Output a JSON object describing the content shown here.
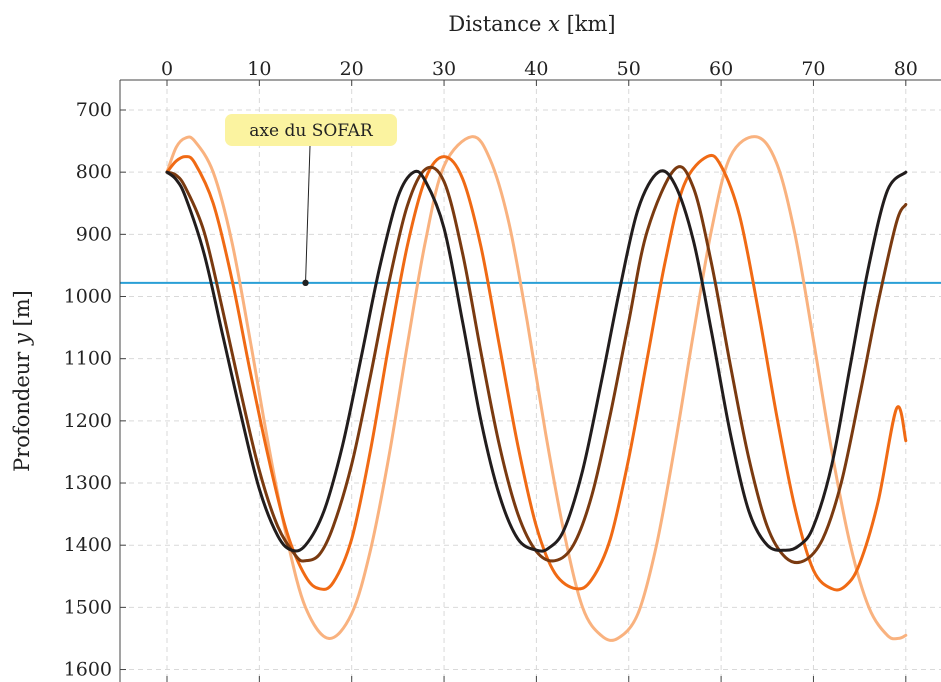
{
  "chart_data": {
    "type": "line",
    "xlabel_prefix": "Distance ",
    "xlabel_var": "x",
    "xlabel_unit": " [km]",
    "ylabel_prefix": "Profondeur ",
    "ylabel_var": "y",
    "ylabel_unit": " [m]",
    "xlim": [
      -5,
      81
    ],
    "ylim": [
      1625,
      665
    ],
    "y_inverted": true,
    "x_ticks": [
      0,
      10,
      20,
      30,
      40,
      50,
      60,
      70,
      80
    ],
    "y_ticks": [
      700,
      800,
      900,
      1000,
      1100,
      1200,
      1300,
      1400,
      1500,
      1600
    ],
    "x_tick_labels": [
      "0",
      "10",
      "20",
      "30",
      "40",
      "50",
      "60",
      "70",
      "80"
    ],
    "y_tick_labels": [
      "700",
      "800",
      "900",
      "1000",
      "1100",
      "1200",
      "1300",
      "1400",
      "1500",
      "1600"
    ],
    "grid": true,
    "x_axis_position": "top",
    "annotation": {
      "text": "axe du SOFAR",
      "x": 15,
      "y": 978,
      "color": "#fbf3a0"
    },
    "reference_line": {
      "y": 978,
      "color": "#2a9fd6"
    },
    "series": [
      {
        "color": "#221d1d",
        "x": [
          0,
          1,
          2,
          4,
          6,
          8,
          10,
          12,
          13.5,
          15,
          17,
          19,
          21,
          23,
          25,
          26.7,
          28,
          30,
          32,
          34,
          36,
          38,
          40,
          41.3,
          43,
          45,
          47,
          49,
          51,
          53.2,
          55,
          57,
          59,
          61,
          63,
          65,
          67,
          68.5,
          70,
          72,
          74,
          76,
          78,
          80
        ],
        "y": [
          800,
          812,
          840,
          930,
          1060,
          1190,
          1310,
          1385,
          1408,
          1400,
          1345,
          1240,
          1100,
          955,
          840,
          800,
          815,
          890,
          1040,
          1200,
          1320,
          1390,
          1408,
          1405,
          1375,
          1280,
          1140,
          990,
          860,
          800,
          820,
          910,
          1060,
          1220,
          1345,
          1400,
          1408,
          1400,
          1370,
          1270,
          1110,
          950,
          830,
          800
        ]
      },
      {
        "color": "#7a3a10",
        "x": [
          0,
          1,
          2,
          4,
          6,
          8,
          10,
          12,
          14,
          15,
          16.5,
          18,
          20,
          22,
          24,
          26,
          28,
          30,
          32,
          34,
          36,
          38,
          40,
          42,
          44,
          46,
          48,
          50,
          52,
          55,
          57,
          59,
          61,
          63,
          65,
          67,
          69,
          71,
          73,
          75,
          77,
          79,
          80
        ],
        "y": [
          800,
          805,
          825,
          895,
          1020,
          1155,
          1280,
          1370,
          1418,
          1425,
          1415,
          1370,
          1270,
          1130,
          980,
          855,
          795,
          815,
          930,
          1090,
          1240,
          1350,
          1410,
          1425,
          1400,
          1320,
          1190,
          1040,
          895,
          795,
          825,
          950,
          1110,
          1260,
          1370,
          1420,
          1425,
          1390,
          1300,
          1160,
          1010,
          880,
          852
        ]
      },
      {
        "color": "#f06a14",
        "x": [
          0,
          1,
          2,
          3,
          5,
          7,
          9,
          11,
          13,
          15,
          16.5,
          18,
          20,
          22,
          24,
          26,
          28,
          30,
          32,
          34,
          36,
          38,
          40,
          42,
          44.3,
          46,
          48,
          50,
          52,
          54,
          56,
          58.5,
          60,
          62,
          64,
          66,
          68,
          70,
          72,
          73.5,
          75,
          77,
          79,
          80
        ],
        "y": [
          800,
          782,
          775,
          785,
          850,
          970,
          1120,
          1260,
          1380,
          1450,
          1470,
          1460,
          1390,
          1250,
          1080,
          920,
          810,
          775,
          810,
          920,
          1080,
          1240,
          1370,
          1445,
          1470,
          1455,
          1390,
          1260,
          1100,
          940,
          820,
          775,
          790,
          870,
          1020,
          1190,
          1340,
          1440,
          1470,
          1465,
          1430,
          1330,
          1180,
          1232
        ]
      },
      {
        "color": "#f9b27f",
        "x": [
          0,
          1,
          2,
          3,
          5,
          7,
          9,
          11,
          13,
          15,
          17.5,
          20,
          22,
          24,
          26,
          28,
          30,
          33,
          35,
          37,
          39,
          41,
          43,
          45,
          47,
          48.8,
          51,
          53,
          55,
          57,
          59,
          61,
          63.8,
          66,
          68,
          70,
          72,
          74,
          76,
          78,
          79.2,
          80
        ],
        "y": [
          800,
          760,
          745,
          750,
          800,
          910,
          1070,
          1240,
          1390,
          1500,
          1550,
          1510,
          1410,
          1260,
          1080,
          910,
          790,
          743,
          780,
          880,
          1040,
          1220,
          1380,
          1500,
          1545,
          1550,
          1510,
          1400,
          1240,
          1060,
          890,
          775,
          743,
          785,
          900,
          1070,
          1250,
          1400,
          1500,
          1545,
          1550,
          1545
        ]
      }
    ]
  }
}
